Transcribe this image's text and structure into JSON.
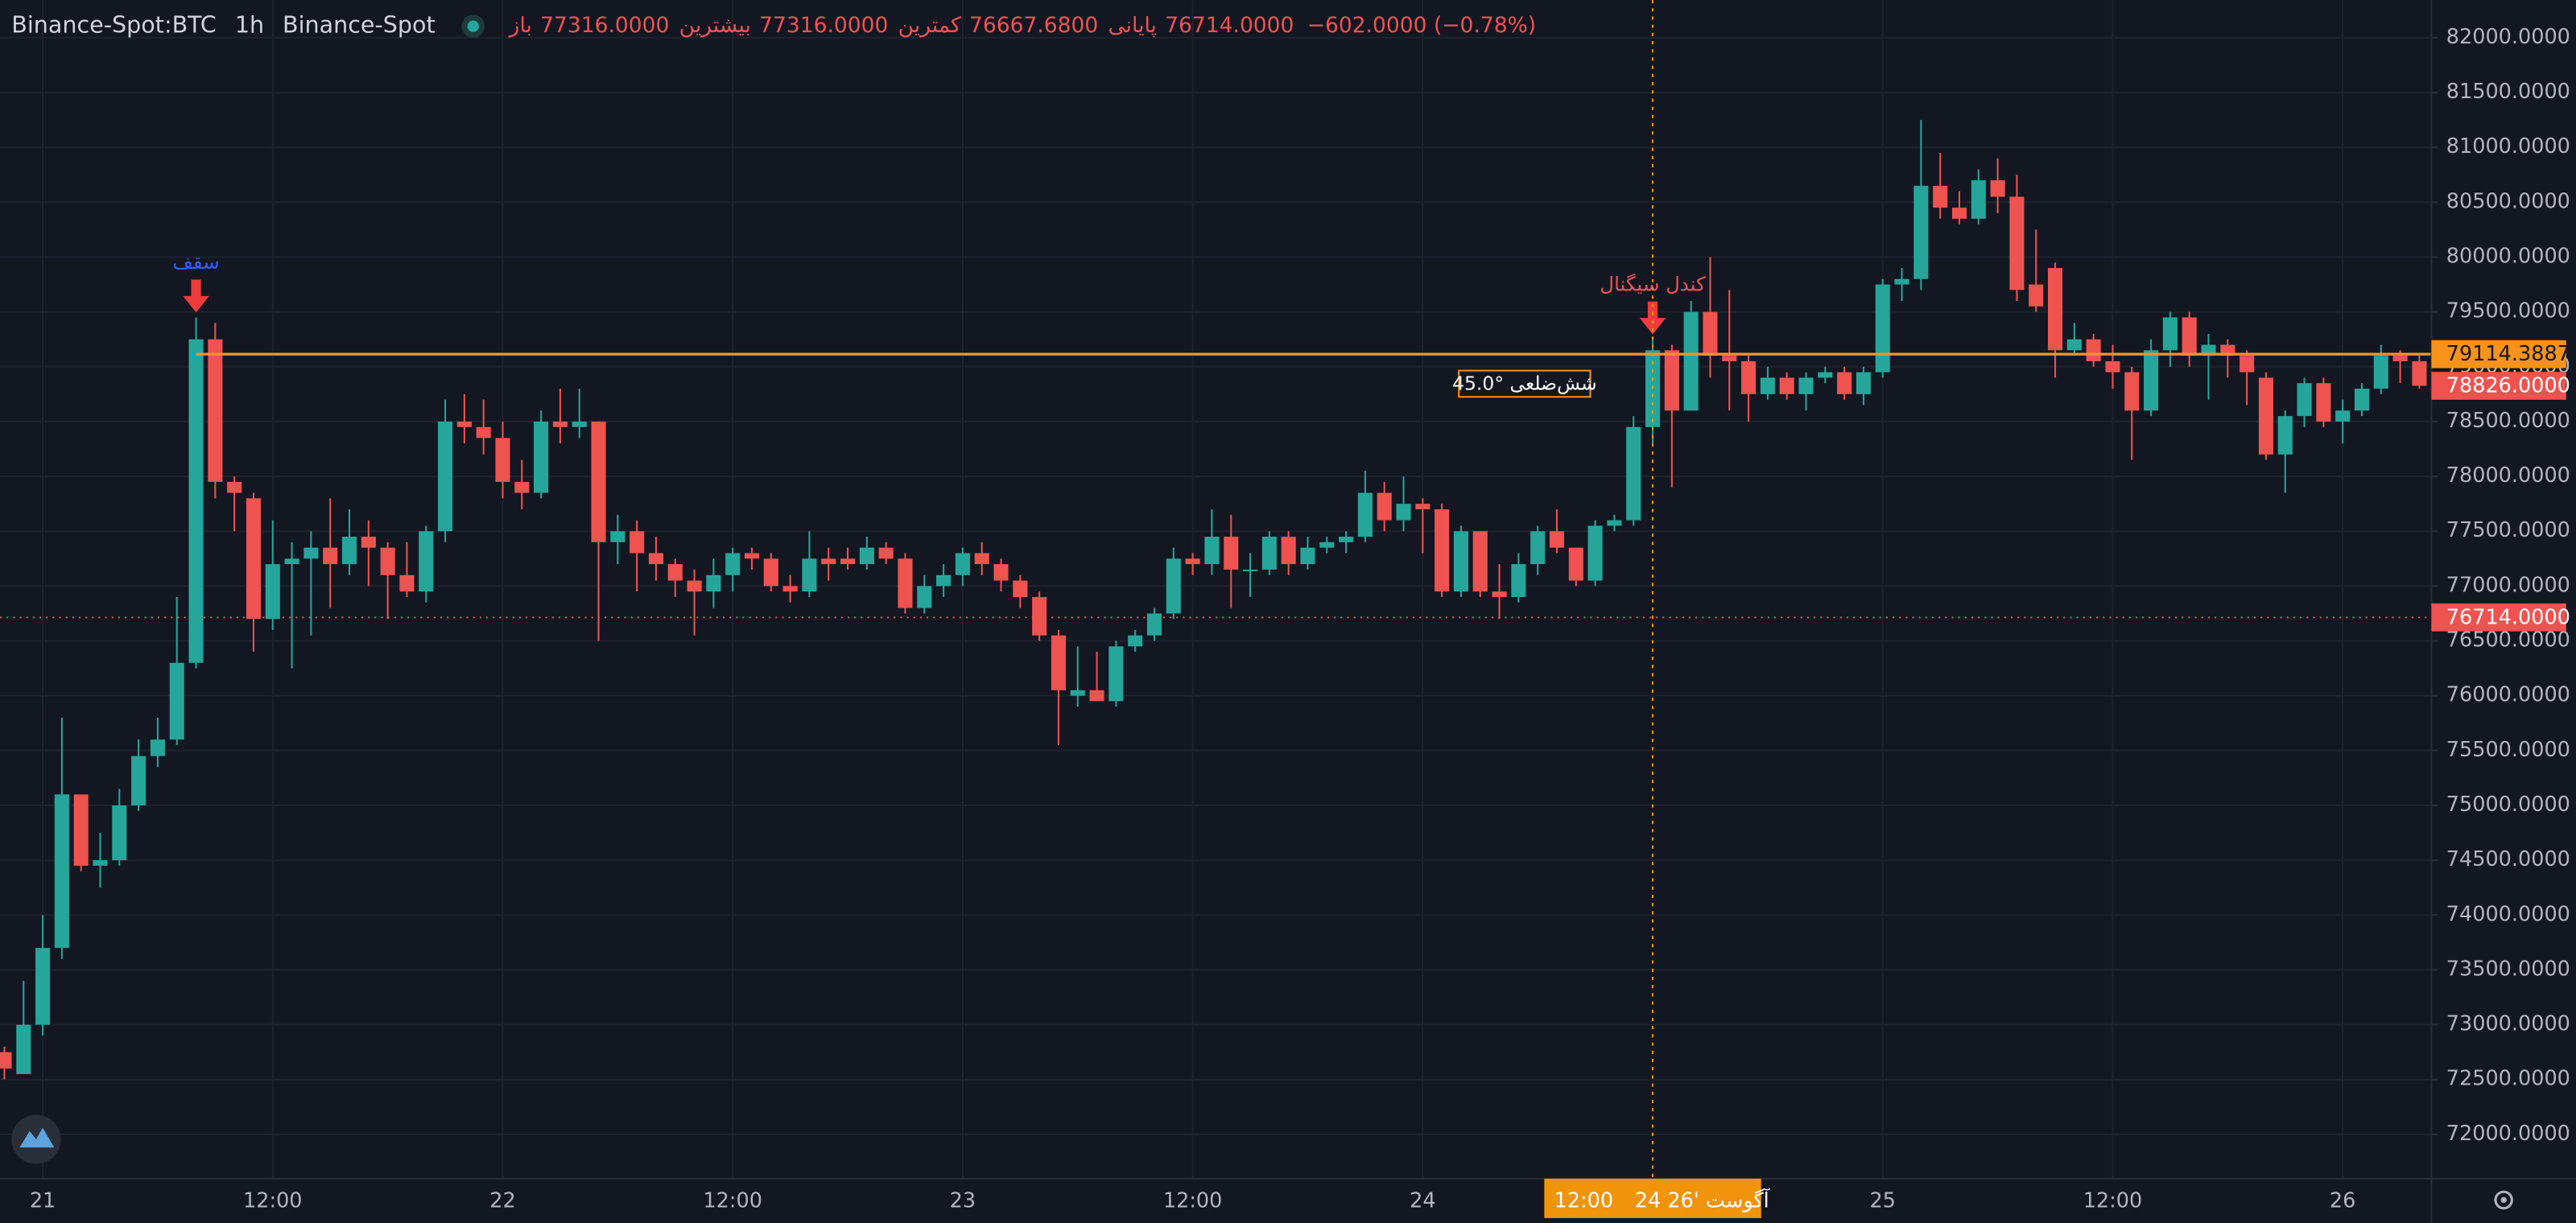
{
  "chart_data": {
    "type": "candlestick",
    "symbol": "Binance-Spot:BTC",
    "interval": "1h",
    "exchange": "Binance-Spot",
    "ohlc_header": [
      {
        "label": "باز",
        "value": "77316.0000"
      },
      {
        "label": "بیشترین",
        "value": "77316.0000"
      },
      {
        "label": "کمترین",
        "value": "76667.6800"
      },
      {
        "label": "پایانی",
        "value": "76714.0000"
      }
    ],
    "change": "−602.0000 (−0.78%)",
    "up_color": "#26a69a",
    "down_color": "#ef5350",
    "open": [
      72750,
      72550,
      73000,
      73700,
      75100,
      74450,
      74500,
      75000,
      75450,
      75600,
      76300,
      79250,
      77950,
      77800,
      76700,
      77200,
      77250,
      77350,
      77200,
      77450,
      77350,
      77100,
      76950,
      77500,
      78500,
      78450,
      78350,
      77950,
      77850,
      78500,
      78450,
      78500,
      77400,
      77500,
      77300,
      77200,
      77050,
      76950,
      77100,
      77300,
      77250,
      77000,
      76950,
      77250,
      77250,
      77200,
      77350,
      77250,
      76800,
      77000,
      77100,
      77300,
      77200,
      77050,
      76900,
      76550,
      76000,
      76050,
      75950,
      76450,
      76550,
      76750,
      77250,
      77200,
      77450,
      77150,
      77150,
      77450,
      77200,
      77350,
      77400,
      77450,
      77850,
      77600,
      77750,
      77700,
      76950,
      77500,
      76950,
      76900,
      77200,
      77500,
      77350,
      77050,
      77550,
      77600,
      78450,
      79150,
      78600,
      79500,
      79100,
      79050,
      78750,
      78900,
      78750,
      78900,
      78950,
      78750,
      78950,
      79750,
      79800,
      80650,
      80450,
      80350,
      80700,
      80550,
      79750,
      79900,
      79150,
      79250,
      79050,
      78950,
      78600,
      79150,
      79450,
      79100,
      79200,
      79100,
      78900,
      78200,
      78550,
      78850,
      78500,
      78600,
      78800,
      79100,
      79050
    ],
    "high": [
      72800,
      73400,
      74000,
      75800,
      75100,
      74750,
      75150,
      75600,
      75800,
      76900,
      79450,
      79400,
      78000,
      77850,
      77600,
      77400,
      77500,
      77800,
      77700,
      77600,
      77400,
      77400,
      77550,
      78700,
      78750,
      78700,
      78500,
      78150,
      78600,
      78800,
      78800,
      78500,
      77650,
      77600,
      77450,
      77250,
      77150,
      77250,
      77350,
      77350,
      77300,
      77100,
      77500,
      77350,
      77350,
      77450,
      77400,
      77300,
      77100,
      77200,
      77350,
      77400,
      77250,
      77100,
      76950,
      76600,
      76450,
      76400,
      76500,
      76600,
      76800,
      77350,
      77300,
      77700,
      77650,
      77300,
      77500,
      77500,
      77450,
      77450,
      77500,
      78050,
      77950,
      78000,
      77800,
      77750,
      77550,
      77500,
      77200,
      77300,
      77550,
      77700,
      77350,
      77600,
      77650,
      78550,
      79250,
      79200,
      79600,
      80000,
      79700,
      79100,
      79000,
      78950,
      78950,
      79000,
      79000,
      79000,
      79800,
      79900,
      81250,
      80950,
      80600,
      80800,
      80900,
      80750,
      80250,
      79950,
      79400,
      79300,
      79200,
      79000,
      79250,
      79500,
      79500,
      79300,
      79250,
      79150,
      78950,
      78600,
      78900,
      78900,
      78700,
      78850,
      79200,
      79150,
      79100
    ],
    "low": [
      72500,
      72550,
      72900,
      73600,
      74400,
      74250,
      74450,
      74950,
      75350,
      75550,
      76250,
      77800,
      77500,
      76400,
      76600,
      76250,
      76550,
      76800,
      77100,
      77000,
      76700,
      76900,
      76850,
      77400,
      78300,
      78200,
      77800,
      77700,
      77800,
      78300,
      78350,
      76500,
      77200,
      76950,
      77050,
      76900,
      76550,
      76800,
      76950,
      77150,
      76950,
      76850,
      76900,
      77050,
      77150,
      77150,
      77200,
      76750,
      76750,
      76900,
      77000,
      77100,
      76950,
      76800,
      76500,
      75550,
      75900,
      75950,
      75900,
      76400,
      76500,
      76700,
      77100,
      77100,
      76800,
      76900,
      77100,
      77100,
      77150,
      77300,
      77300,
      77400,
      77500,
      77500,
      77300,
      76900,
      76900,
      76900,
      76700,
      76850,
      77100,
      77300,
      77000,
      77000,
      77500,
      77550,
      78300,
      77900,
      78600,
      78900,
      78600,
      78500,
      78700,
      78700,
      78600,
      78850,
      78700,
      78650,
      78900,
      79600,
      79700,
      80350,
      80300,
      80300,
      80400,
      79600,
      79500,
      78900,
      79100,
      79000,
      78800,
      78150,
      78550,
      79000,
      79000,
      78700,
      78900,
      78650,
      78150,
      77850,
      78450,
      78450,
      78300,
      78550,
      78750,
      78850,
      78800
    ],
    "close": [
      72600,
      73000,
      73700,
      75100,
      74450,
      74500,
      75000,
      75450,
      75600,
      76300,
      79250,
      77950,
      77850,
      76700,
      77200,
      77250,
      77350,
      77200,
      77450,
      77350,
      77100,
      76950,
      77500,
      78500,
      78450,
      78350,
      77950,
      77850,
      78500,
      78450,
      78500,
      77400,
      77500,
      77300,
      77200,
      77050,
      76950,
      77100,
      77300,
      77250,
      77000,
      76950,
      77250,
      77200,
      77200,
      77350,
      77250,
      76800,
      77000,
      77100,
      77300,
      77200,
      77050,
      76900,
      76550,
      76050,
      76050,
      75950,
      76450,
      76550,
      76750,
      77250,
      77200,
      77450,
      77150,
      77150,
      77450,
      77200,
      77350,
      77400,
      77450,
      77850,
      77600,
      77750,
      77700,
      76950,
      77500,
      76950,
      76900,
      77200,
      77500,
      77350,
      77050,
      77550,
      77600,
      78450,
      79150,
      78600,
      79500,
      79100,
      79050,
      78750,
      78900,
      78750,
      78900,
      78950,
      78750,
      78950,
      79750,
      79800,
      80650,
      80450,
      80350,
      80700,
      80550,
      79700,
      79550,
      79150,
      79250,
      79050,
      78950,
      78600,
      79150,
      79450,
      79100,
      79200,
      79100,
      78950,
      78200,
      78550,
      78850,
      78500,
      78600,
      78800,
      79100,
      79050,
      78826
    ],
    "xlim": [
      -0.229,
      126.63
    ],
    "xticks": [
      {
        "value": 2,
        "label": "21"
      },
      {
        "value": 14,
        "label": "12:00"
      },
      {
        "value": 26,
        "label": "22"
      },
      {
        "value": 38,
        "label": "12:00"
      },
      {
        "value": 50,
        "label": "23"
      },
      {
        "value": 62,
        "label": "12:00"
      },
      {
        "value": 74,
        "label": "24"
      },
      {
        "value": 98,
        "label": "25"
      },
      {
        "value": 110,
        "label": "12:00"
      },
      {
        "value": 122,
        "label": "26"
      }
    ],
    "ylim": [
      71596,
      82344
    ],
    "yticks": [
      {
        "value": 72000,
        "label": "72000.0000"
      },
      {
        "value": 72500,
        "label": "72500.0000"
      },
      {
        "value": 73000,
        "label": "73000.0000"
      },
      {
        "value": 73500,
        "label": "73500.0000"
      },
      {
        "value": 74000,
        "label": "74000.0000"
      },
      {
        "value": 74500,
        "label": "74500.0000"
      },
      {
        "value": 75000,
        "label": "75000.0000"
      },
      {
        "value": 75500,
        "label": "75500.0000"
      },
      {
        "value": 76000,
        "label": "76000.0000"
      },
      {
        "value": 76500,
        "label": "76500.0000"
      },
      {
        "value": 77000,
        "label": "77000.0000"
      },
      {
        "value": 77500,
        "label": "77500.0000"
      },
      {
        "value": 78000,
        "label": "78000.0000"
      },
      {
        "value": 78500,
        "label": "78500.0000"
      },
      {
        "value": 79000,
        "label": "79000.0000"
      },
      {
        "value": 79500,
        "label": "79500.0000"
      },
      {
        "value": 80000,
        "label": "80000.0000"
      },
      {
        "value": 80500,
        "label": "80500.0000"
      },
      {
        "value": 81000,
        "label": "81000.0000"
      },
      {
        "value": 81500,
        "label": "81500.0000"
      },
      {
        "value": 82000,
        "label": "82000.0000"
      }
    ],
    "grid": true,
    "level_line": {
      "value": 79114.3887,
      "label": "79114.3887",
      "start": 10,
      "color": "#f7931a",
      "tag": "45.0° شش‌ضلعی"
    },
    "last_price": {
      "value": 78826,
      "label": "78826.0000",
      "color": "#ef5350"
    },
    "close_line": {
      "value": 76714,
      "label": "76714.0000",
      "color": "#ef5350"
    },
    "annotations": [
      {
        "text": "سقف",
        "candle": 10,
        "color": "#2962ff"
      },
      {
        "text": "کندل سیگنال",
        "candle": 86,
        "color": "#ef5350"
      }
    ],
    "crosshair": {
      "x": 86,
      "date_label": "24 آگوست '26",
      "time_label": "12:00",
      "color": "#f0940c"
    }
  }
}
